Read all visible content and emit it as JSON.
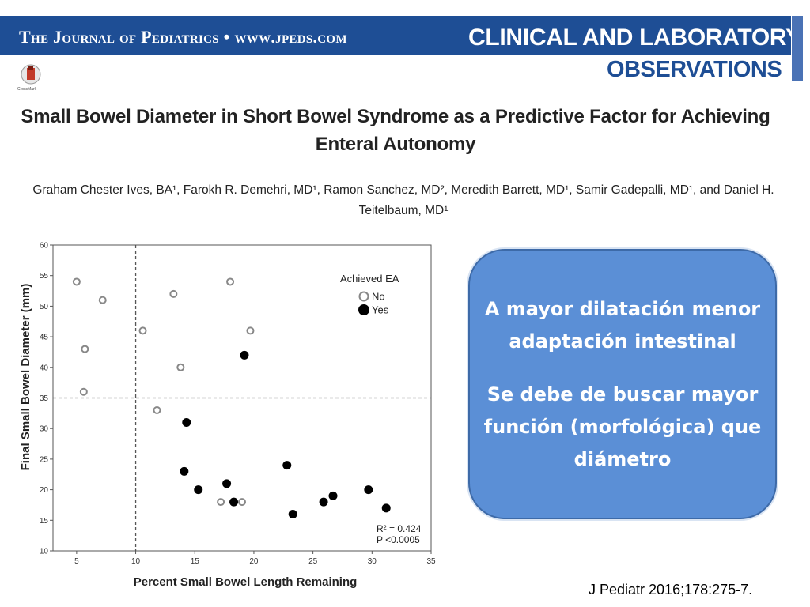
{
  "header": {
    "journal_line": "The Journal of Pediatrics • www.jpeds.com",
    "section_title": "CLINICAL AND LABORATORY",
    "section_subtitle": "OBSERVATIONS",
    "brand_color": "#1e4e95",
    "badge_label": "CrossMark",
    "badge_icon": "crossmark-icon"
  },
  "paper": {
    "title": "Small Bowel Diameter in Short Bowel Syndrome as a Predictive Factor for Achieving Enteral Autonomy",
    "authors": "Graham Chester Ives, BA¹, Farokh R. Demehri, MD¹, Ramon Sanchez, MD², Meredith Barrett, MD¹, Samir Gadepalli, MD¹, and Daniel H. Teitelbaum, MD¹"
  },
  "callout": {
    "line1": "A mayor dilatación menor adaptación intestinal",
    "line2": "Se debe de buscar mayor función (morfológica) que diámetro",
    "color": "#5b8fd6"
  },
  "citation": "J Pediatr 2016;178:275-7.",
  "chart_data": {
    "type": "scatter",
    "xlabel": "Percent Small Bowel Length Remaining",
    "ylabel": "Final Small Bowel Diameter (mm)",
    "xlim": [
      3,
      35
    ],
    "ylim": [
      10,
      60
    ],
    "xticks": [
      5,
      10,
      15,
      20,
      25,
      30,
      35
    ],
    "yticks": [
      10,
      15,
      20,
      25,
      30,
      35,
      40,
      45,
      50,
      55,
      60
    ],
    "reference_lines": {
      "x": 10,
      "y": 35
    },
    "grid": false,
    "legend": {
      "title": "Achieved EA",
      "position": "top-right"
    },
    "stats": {
      "r2": "R² = 0.424",
      "p": "P <0.0005"
    },
    "series": [
      {
        "name": "No",
        "marker": "open-circle",
        "points": [
          {
            "x": 5.0,
            "y": 54
          },
          {
            "x": 7.2,
            "y": 51
          },
          {
            "x": 5.7,
            "y": 43
          },
          {
            "x": 5.6,
            "y": 36
          },
          {
            "x": 10.6,
            "y": 46
          },
          {
            "x": 11.8,
            "y": 33
          },
          {
            "x": 13.2,
            "y": 52
          },
          {
            "x": 13.8,
            "y": 40
          },
          {
            "x": 18.0,
            "y": 54
          },
          {
            "x": 19.7,
            "y": 46
          },
          {
            "x": 17.2,
            "y": 18
          },
          {
            "x": 19.0,
            "y": 18
          }
        ]
      },
      {
        "name": "Yes",
        "marker": "filled-circle",
        "points": [
          {
            "x": 19.2,
            "y": 42
          },
          {
            "x": 14.3,
            "y": 31
          },
          {
            "x": 14.1,
            "y": 23
          },
          {
            "x": 15.3,
            "y": 20
          },
          {
            "x": 17.7,
            "y": 21
          },
          {
            "x": 18.3,
            "y": 18
          },
          {
            "x": 22.8,
            "y": 24
          },
          {
            "x": 23.3,
            "y": 16
          },
          {
            "x": 25.9,
            "y": 18
          },
          {
            "x": 26.7,
            "y": 19
          },
          {
            "x": 29.7,
            "y": 20
          },
          {
            "x": 31.2,
            "y": 17
          }
        ]
      }
    ]
  }
}
